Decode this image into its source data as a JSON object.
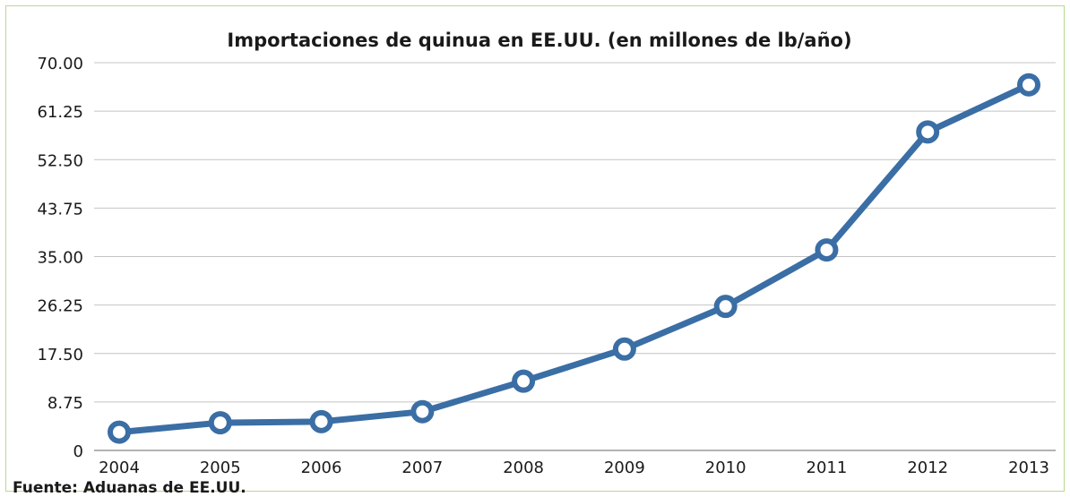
{
  "chart_data": {
    "type": "line",
    "title": "Importaciones de quinua en EE.UU. (en millones de lb/año)",
    "source": "Fuente: Aduanas de EE.UU.",
    "x": [
      "2004",
      "2005",
      "2006",
      "2007",
      "2008",
      "2009",
      "2010",
      "2011",
      "2012",
      "2013"
    ],
    "series": [
      {
        "values": [
          3.3,
          5.0,
          5.2,
          7.0,
          12.5,
          18.3,
          26.0,
          36.2,
          57.5,
          66.0
        ]
      }
    ],
    "yticks": [
      "0",
      "8.75",
      "17.50",
      "26.25",
      "35.00",
      "43.75",
      "52.50",
      "61.25",
      "70.00"
    ],
    "ylim": [
      0,
      70
    ],
    "grid": true,
    "line_color": "#3a6ea5",
    "marker_fill": "#ffffff"
  }
}
